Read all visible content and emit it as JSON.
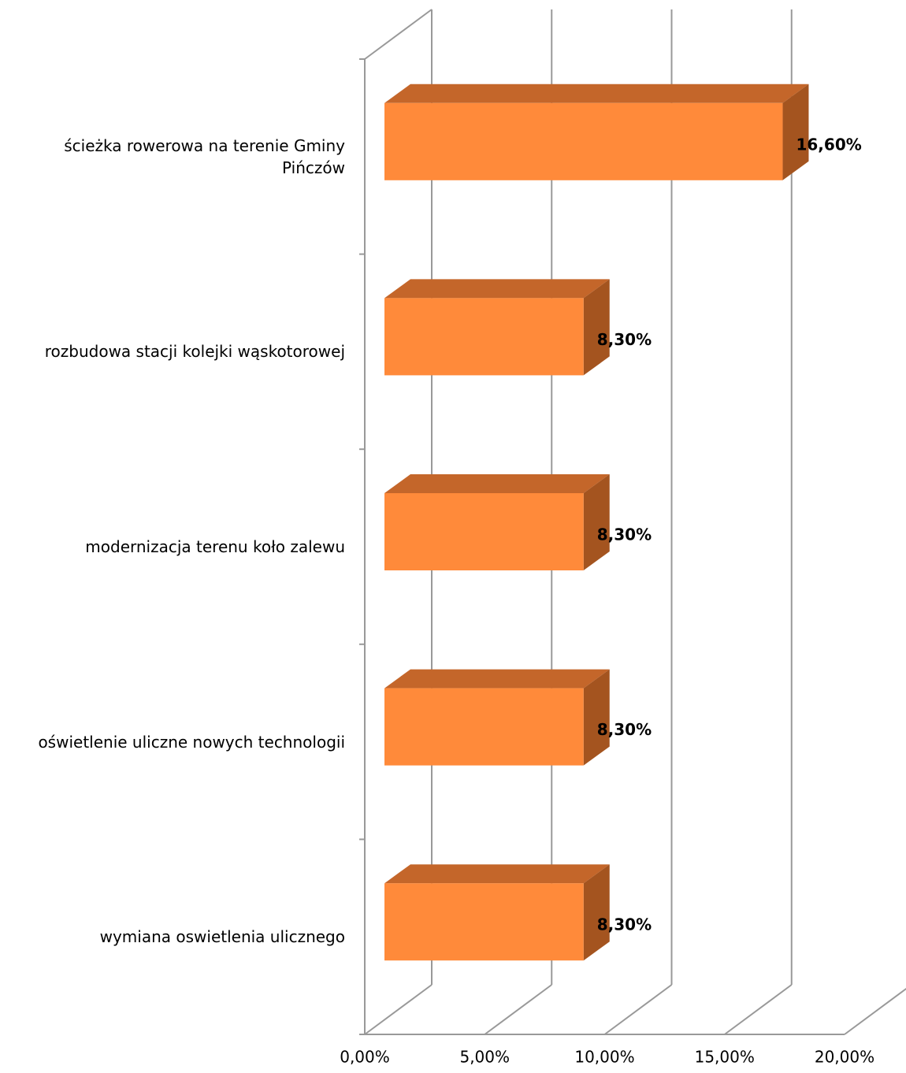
{
  "chart_data": {
    "type": "bar3d_horizontal",
    "categories": [
      "ścieżka rowerowa na terenie Gminy Pińczów",
      "rozbudowa stacji kolejki wąskotorowej",
      "modernizacja terenu koło zalewu",
      "oświetlenie uliczne nowych technologii",
      "wymiana oswietlenia ulicznego"
    ],
    "values": [
      16.6,
      8.3,
      8.3,
      8.3,
      8.3
    ],
    "value_labels": [
      "16,60%",
      "8,30%",
      "8,30%",
      "8,30%",
      "8,30%"
    ],
    "color": "#ff8a3a",
    "xlim": [
      0,
      20
    ],
    "xticks": [
      {
        "value": 0,
        "label": "0,00%"
      },
      {
        "value": 5,
        "label": "5,00%"
      },
      {
        "value": 10,
        "label": "10,00%"
      },
      {
        "value": 15,
        "label": "15,00%"
      },
      {
        "value": 20,
        "label": "20,00%"
      }
    ],
    "grid": true
  }
}
